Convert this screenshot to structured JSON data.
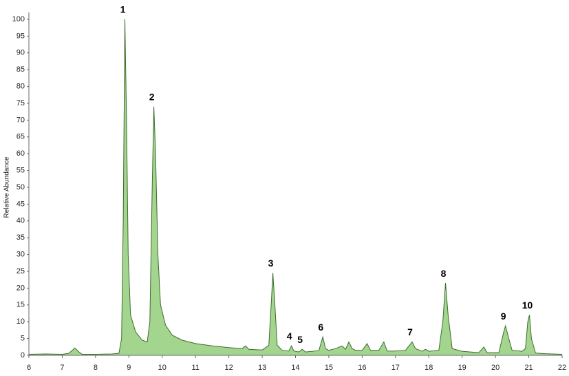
{
  "chart_data": {
    "type": "area",
    "y_label": "Relative Abundance",
    "x": [
      6.0,
      6.5,
      7.0,
      7.2,
      7.38,
      7.5,
      7.6,
      8.0,
      8.5,
      8.7,
      8.78,
      8.83,
      8.88,
      8.93,
      8.98,
      9.05,
      9.2,
      9.4,
      9.55,
      9.63,
      9.7,
      9.75,
      9.8,
      9.87,
      9.95,
      10.1,
      10.3,
      10.6,
      11.0,
      11.5,
      12.0,
      12.4,
      12.5,
      12.6,
      13.0,
      13.2,
      13.27,
      13.32,
      13.38,
      13.45,
      13.6,
      13.8,
      13.88,
      13.95,
      14.1,
      14.2,
      14.3,
      14.7,
      14.82,
      14.9,
      15.0,
      15.2,
      15.4,
      15.5,
      15.6,
      15.7,
      15.8,
      16.0,
      16.15,
      16.25,
      16.5,
      16.65,
      16.75,
      17.0,
      17.3,
      17.5,
      17.6,
      17.8,
      17.9,
      18.0,
      18.3,
      18.42,
      18.5,
      18.58,
      18.7,
      19.0,
      19.5,
      19.65,
      19.75,
      20.1,
      20.25,
      20.3,
      20.4,
      20.5,
      20.8,
      20.9,
      20.97,
      21.02,
      21.08,
      21.2,
      21.5,
      22.0
    ],
    "series": [
      {
        "color": "#a3d58f",
        "line_color": "#3d6b2c",
        "values": [
          0.3,
          0.4,
          0.3,
          0.6,
          2.2,
          1.0,
          0.3,
          0.3,
          0.4,
          0.6,
          5,
          40,
          100,
          70,
          30,
          12,
          7,
          4.5,
          4,
          10,
          50,
          74,
          60,
          30,
          15,
          9,
          6,
          4.5,
          3.5,
          2.8,
          2.3,
          2,
          2.8,
          1.8,
          1.6,
          3,
          15,
          24.5,
          15,
          3,
          1.5,
          1.3,
          2.8,
          1.3,
          1.0,
          1.8,
          1,
          1.4,
          5.5,
          2,
          1.5,
          2,
          2.8,
          1.8,
          4.0,
          2,
          1.5,
          1.5,
          3.5,
          1.5,
          1.5,
          4,
          1.3,
          1.3,
          1.5,
          4,
          2,
          1.2,
          1.8,
          1.2,
          1.5,
          10,
          21.5,
          12,
          2,
          1.2,
          0.8,
          2.5,
          0.8,
          0.8,
          7,
          8.8,
          5,
          1.5,
          1.2,
          2,
          10,
          12,
          5,
          0.7,
          0.5,
          0.3
        ]
      }
    ],
    "annotations": [
      {
        "text": "1",
        "x": 8.88,
        "y": 100
      },
      {
        "text": "2",
        "x": 9.75,
        "y": 74
      },
      {
        "text": "3",
        "x": 13.32,
        "y": 24.5
      },
      {
        "text": "4",
        "x": 13.88,
        "y": 2.8
      },
      {
        "text": "5",
        "x": 14.2,
        "y": 1.8
      },
      {
        "text": "6",
        "x": 14.82,
        "y": 5.5
      },
      {
        "text": "7",
        "x": 17.5,
        "y": 4
      },
      {
        "text": "8",
        "x": 18.5,
        "y": 21.5
      },
      {
        "text": "9",
        "x": 20.3,
        "y": 8.8
      },
      {
        "text": "10",
        "x": 21.02,
        "y": 12
      }
    ],
    "xlim": [
      6,
      22
    ],
    "xticks": [
      6,
      7,
      8,
      9,
      10,
      11,
      12,
      13,
      14,
      15,
      16,
      17,
      18,
      19,
      20,
      21,
      22
    ],
    "ylim": [
      0,
      100
    ],
    "yticks": [
      0,
      5,
      10,
      15,
      20,
      25,
      30,
      35,
      40,
      45,
      50,
      55,
      60,
      65,
      70,
      75,
      80,
      85,
      90,
      95,
      100
    ],
    "grid": false
  }
}
